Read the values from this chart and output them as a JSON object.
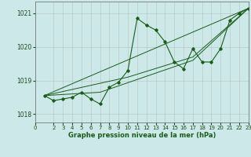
{
  "title": "Graphe pression niveau de la mer (hPa)",
  "bg_color": "#cce8e8",
  "grid_color": "#aaaaaa",
  "line_color": "#1a5c1a",
  "xlim": [
    0,
    23
  ],
  "ylim": [
    1017.75,
    1021.35
  ],
  "xticks": [
    0,
    2,
    3,
    4,
    5,
    6,
    7,
    8,
    9,
    10,
    11,
    12,
    13,
    14,
    15,
    16,
    17,
    18,
    19,
    20,
    21,
    22,
    23
  ],
  "yticks": [
    1018,
    1019,
    1020,
    1021
  ],
  "main_series": {
    "x": [
      1,
      2,
      3,
      4,
      5,
      6,
      7,
      8,
      9,
      10,
      11,
      12,
      13,
      14,
      15,
      16,
      17,
      18,
      19,
      20,
      21,
      22,
      23
    ],
    "y": [
      1018.55,
      1018.4,
      1018.45,
      1018.5,
      1018.65,
      1018.45,
      1018.3,
      1018.8,
      1018.95,
      1019.3,
      1020.85,
      1020.65,
      1020.5,
      1020.15,
      1019.55,
      1019.35,
      1019.95,
      1019.55,
      1019.55,
      1019.95,
      1020.8,
      1021.0,
      1021.15
    ]
  },
  "trend1": {
    "x": [
      1,
      23
    ],
    "y": [
      1018.55,
      1021.15
    ]
  },
  "trend2": {
    "x": [
      1,
      7,
      17,
      23
    ],
    "y": [
      1018.55,
      1018.65,
      1019.6,
      1021.15
    ]
  },
  "trend3": {
    "x": [
      1,
      10,
      17,
      23
    ],
    "y": [
      1018.55,
      1019.1,
      1019.7,
      1021.15
    ]
  }
}
